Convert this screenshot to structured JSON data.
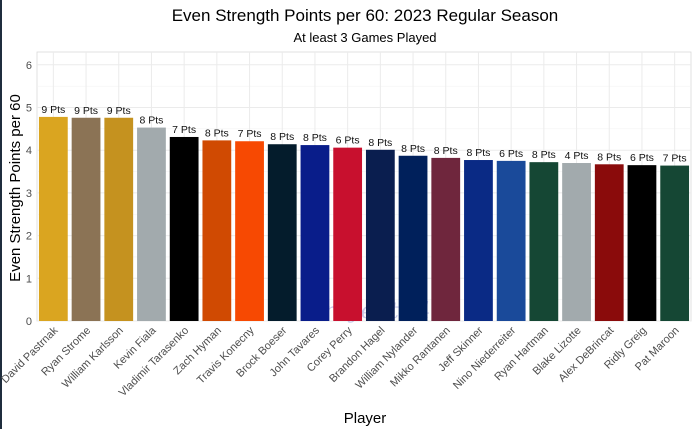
{
  "chart_data": {
    "type": "bar",
    "title": "Even Strength Points per 60: 2023 Regular Season",
    "subtitle": "At least 3 Games Played",
    "xlabel": "Player",
    "ylabel": "Even Strength Points per 60",
    "ylim": [
      0,
      6.3
    ],
    "yticks": [
      0,
      1,
      2,
      3,
      4,
      5,
      6
    ],
    "grid": true,
    "watermark": "Project94",
    "categories": [
      "David Pastrnak",
      "Ryan Strome",
      "William Karlsson",
      "Kevin Fiala",
      "Vladimir Tarasenko",
      "Zach Hyman",
      "Travis Konecny",
      "Brock Boeser",
      "John Tavares",
      "Corey Perry",
      "Brandon Hagel",
      "William Nylander",
      "Mikko Rantanen",
      "Jeff Skinner",
      "Nino Niederreiter",
      "Ryan Hartman",
      "Blake Lizotte",
      "Alex DeBrincat",
      "Ridly Greig",
      "Pat Maroon"
    ],
    "values": [
      4.78,
      4.76,
      4.76,
      4.53,
      4.31,
      4.23,
      4.21,
      4.14,
      4.12,
      4.06,
      4.01,
      3.87,
      3.82,
      3.77,
      3.75,
      3.72,
      3.7,
      3.67,
      3.65,
      3.64
    ],
    "labels": [
      "9 Pts",
      "9 Pts",
      "9 Pts",
      "8 Pts",
      "7 Pts",
      "8 Pts",
      "7 Pts",
      "8 Pts",
      "8 Pts",
      "6 Pts",
      "8 Pts",
      "8 Pts",
      "8 Pts",
      "8 Pts",
      "6 Pts",
      "8 Pts",
      "4 Pts",
      "8 Pts",
      "6 Pts",
      "7 Pts"
    ],
    "colors": [
      "#DAA520",
      "#8B7355",
      "#C5921F",
      "#A2AAAD",
      "#000000",
      "#D04A02",
      "#F74902",
      "#041C2C",
      "#091D8A",
      "#C8102E",
      "#0A1E4F",
      "#00205B",
      "#6F263D",
      "#0A2A85",
      "#1A4A9A",
      "#154734",
      "#A2AAAD",
      "#8A0B0B",
      "#000000",
      "#154734"
    ]
  }
}
